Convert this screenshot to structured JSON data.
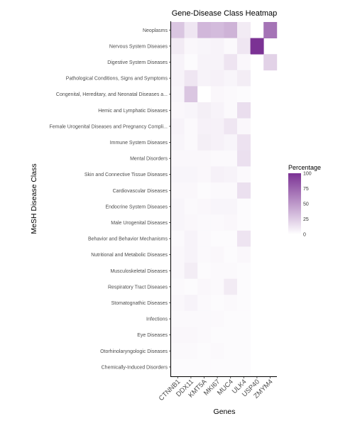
{
  "chart_data": {
    "type": "heatmap",
    "title": "Gene-Disease Class Heatmap",
    "xlabel": "Genes",
    "ylabel": "MeSH Disease Class",
    "genes": [
      "CTNNB1",
      "DDX11",
      "KMT5A",
      "MKI67",
      "MUC4",
      "ULK4",
      "USP40",
      "ZMYM4"
    ],
    "diseases": [
      "Neoplasms",
      "Nervous System Diseases",
      "Digestive System Diseases",
      "Pathological Conditions, Signs and Symptoms",
      "Congenital, Hereditary, and Neonatal Diseases a...",
      "Hemic and Lymphatic Diseases",
      "Female Urogenital Diseases and Pregnancy Compli...",
      "Immune System Diseases",
      "Mental Disorders",
      "Skin and Connective Tissue Diseases",
      "Cardiovascular Diseases",
      "Endocrine System Diseases",
      "Male Urogenital Diseases",
      "Behavior and Behavior Mechanisms",
      "Nutritional and Metabolic Diseases",
      "Musculoskeletal Diseases",
      "Respiratory Tract Diseases",
      "Stomatognathic Diseases",
      "Infections",
      "Eye Diseases",
      "Otorhinolaryngologic Diseases",
      "Chemically-Induced Disorders"
    ],
    "values": [
      [
        28,
        12,
        35,
        33,
        37,
        10,
        null,
        68
      ],
      [
        10,
        4,
        5,
        6,
        3,
        12,
        100,
        null
      ],
      [
        6,
        2,
        6,
        6,
        13,
        4,
        null,
        22
      ],
      [
        6,
        12,
        6,
        7,
        5,
        9,
        null,
        null
      ],
      [
        5,
        28,
        0,
        4,
        3,
        2,
        null,
        null
      ],
      [
        4,
        5,
        8,
        6,
        3,
        16,
        null,
        null
      ],
      [
        6,
        3,
        7,
        7,
        12,
        4,
        null,
        null
      ],
      [
        5,
        3,
        8,
        7,
        5,
        14,
        null,
        null
      ],
      [
        4,
        4,
        4,
        3,
        3,
        15,
        null,
        null
      ],
      [
        5,
        5,
        4,
        7,
        6,
        3,
        null,
        null
      ],
      [
        4,
        4,
        2,
        3,
        3,
        15,
        null,
        null
      ],
      [
        5,
        3,
        4,
        5,
        5,
        2,
        null,
        null
      ],
      [
        5,
        4,
        3,
        3,
        4,
        2,
        null,
        null
      ],
      [
        3,
        6,
        3,
        2,
        2,
        13,
        null,
        null
      ],
      [
        4,
        6,
        3,
        4,
        2,
        4,
        null,
        null
      ],
      [
        4,
        9,
        2,
        3,
        3,
        2,
        null,
        null
      ],
      [
        3,
        2,
        4,
        3,
        10,
        2,
        null,
        null
      ],
      [
        4,
        6,
        3,
        2,
        3,
        2,
        null,
        null
      ],
      [
        3,
        3,
        3,
        3,
        2,
        2,
        null,
        null
      ],
      [
        4,
        4,
        3,
        2,
        2,
        2,
        null,
        null
      ],
      [
        3,
        3,
        2,
        3,
        2,
        2,
        null,
        null
      ],
      [
        2,
        2,
        2,
        2,
        2,
        2,
        null,
        null
      ]
    ],
    "legend": {
      "title": "Percentage",
      "ticks": [
        100,
        75,
        50,
        25,
        0
      ],
      "range": [
        0,
        100
      ],
      "low_color": "#ffffff",
      "high_color": "#7b3294"
    }
  }
}
